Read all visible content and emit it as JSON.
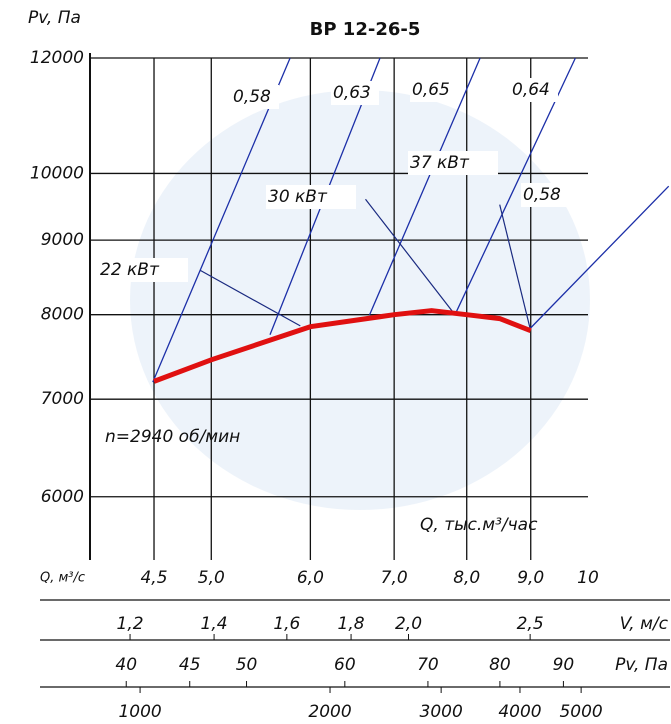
{
  "chart_data": {
    "type": "line",
    "title": "ВР 12-26-5",
    "y_label": "Pv, Па",
    "x_label": "Q, тыс.м³/час",
    "x_label_bottom": "Q, м³/с",
    "annotation": "n=2940 об/мин",
    "log_x": true,
    "log_y": true,
    "grid": true,
    "xlim": [
      4,
      10
    ],
    "ylim": [
      5560,
      12000
    ],
    "xticks": [
      {
        "value": 4.5,
        "label": "4,5"
      },
      {
        "value": 5,
        "label": "5,0"
      },
      {
        "value": 6,
        "label": "6,0"
      },
      {
        "value": 7,
        "label": "7,0"
      },
      {
        "value": 8,
        "label": "8,0"
      },
      {
        "value": 9,
        "label": "9,0"
      },
      10
    ],
    "yticks": [
      6000,
      7000,
      8000,
      9000,
      10000,
      12000
    ],
    "series": [
      {
        "color": "#e01010",
        "x": [
          4.5,
          5,
          6,
          7,
          7.5,
          8,
          8.5,
          9
        ],
        "values": [
          7200,
          7450,
          7850,
          8000,
          8050,
          8000,
          7950,
          7800
        ]
      }
    ],
    "efficiency_lines": [
      {
        "label": "0,58",
        "color": "#1c2fa8",
        "x": [
          4.49,
          5.78
        ],
        "values": [
          7192,
          12000
        ]
      },
      {
        "label": "0,63",
        "color": "#1c2fa8",
        "x": [
          5.57,
          6.82
        ],
        "values": [
          7750,
          12000
        ]
      },
      {
        "label": "0,65",
        "color": "#1c2fa8",
        "x": [
          6.69,
          8.2
        ],
        "values": [
          7996,
          12000
        ]
      },
      {
        "label": "0,64",
        "color": "#1c2fa8",
        "x": [
          7.83,
          9.77
        ],
        "values": [
          8000,
          12000
        ]
      },
      {
        "label": "0,58",
        "color": "#1c2fa8",
        "x": [
          8.99,
          11.6
        ],
        "values": [
          7827,
          9800
        ]
      }
    ],
    "power_lines": [
      {
        "label": "22 кВт",
        "color": "#1a2a80",
        "x": [
          4.9,
          5.89
        ],
        "values": [
          8580,
          7860
        ]
      },
      {
        "label": "30 кВт",
        "color": "#1a2a80",
        "x": [
          6.64,
          7.83
        ],
        "values": [
          9600,
          8000
        ]
      },
      {
        "label": "37 кВт",
        "color": "#1a2a80",
        "x": [
          8.5,
          8.99
        ],
        "values": [
          9520,
          7827
        ]
      }
    ],
    "scales": [
      {
        "label": "V, м/с",
        "xlim": [
          1.115,
          2.78
        ],
        "ticks": [
          {
            "value": 1.2,
            "label": "1,2"
          },
          {
            "value": 1.4,
            "label": "1,4"
          },
          {
            "value": 1.6,
            "label": "1,6"
          },
          {
            "value": 1.8,
            "label": "1,8"
          },
          {
            "value": 2.0,
            "label": "2,0"
          },
          {
            "value": 2.5,
            "label": "2,5"
          }
        ]
      },
      {
        "label": "Pv, Па",
        "xlim": [
          37.4,
          94.2
        ],
        "ticks": [
          40,
          45,
          50,
          60,
          70,
          80,
          90
        ]
      },
      {
        "xlim": [
          833,
          5127
        ],
        "ticks": [
          1000,
          2000,
          3000,
          4000,
          5000
        ]
      }
    ]
  }
}
